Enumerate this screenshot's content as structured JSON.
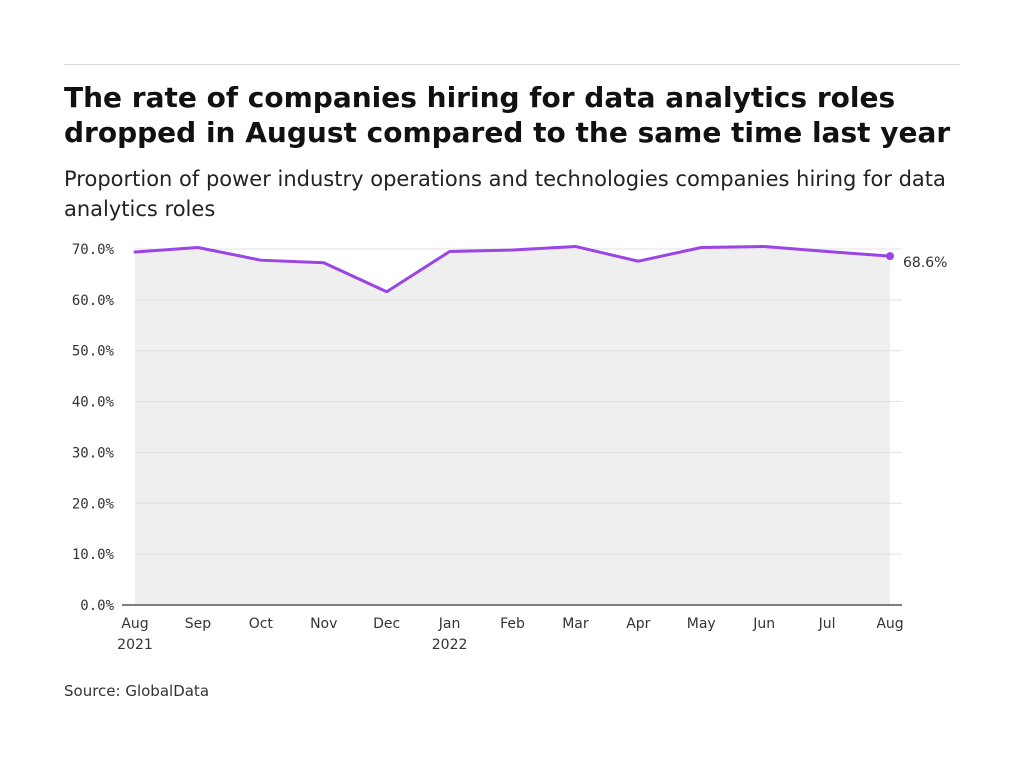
{
  "title": "The rate of companies hiring for data analytics roles dropped in August compared to the same time last year",
  "subtitle": "Proportion of power industry operations and technologies companies hiring for data analytics roles",
  "source": "Source: GlobalData",
  "colors": {
    "line": "#9b45e4",
    "area": "#efefef",
    "grid": "#e0e0e0",
    "axis": "#333333"
  },
  "chart_data": {
    "type": "line",
    "title": "The rate of companies hiring for data analytics roles dropped in August compared to the same time last year",
    "subtitle": "Proportion of power industry operations and technologies companies hiring for data analytics roles",
    "categories": [
      {
        "line1": "Aug",
        "line2": "2021"
      },
      {
        "line1": "Sep",
        "line2": ""
      },
      {
        "line1": "Oct",
        "line2": ""
      },
      {
        "line1": "Nov",
        "line2": ""
      },
      {
        "line1": "Dec",
        "line2": ""
      },
      {
        "line1": "Jan",
        "line2": "2022"
      },
      {
        "line1": "Feb",
        "line2": ""
      },
      {
        "line1": "Mar",
        "line2": ""
      },
      {
        "line1": "Apr",
        "line2": ""
      },
      {
        "line1": "May",
        "line2": ""
      },
      {
        "line1": "Jun",
        "line2": ""
      },
      {
        "line1": "Jul",
        "line2": ""
      },
      {
        "line1": "Aug",
        "line2": ""
      }
    ],
    "values": [
      69.4,
      70.3,
      67.8,
      67.3,
      61.6,
      69.5,
      69.8,
      70.5,
      67.6,
      70.3,
      70.5,
      69.5,
      68.6
    ],
    "ylim": [
      0,
      70
    ],
    "yticks": [
      0,
      10,
      20,
      30,
      40,
      50,
      60,
      70
    ],
    "ytick_labels": [
      "0.0%",
      "10.0%",
      "20.0%",
      "30.0%",
      "40.0%",
      "50.0%",
      "60.0%",
      "70.0%"
    ],
    "end_label": "68.6%",
    "grid": true,
    "area_fill": true
  }
}
